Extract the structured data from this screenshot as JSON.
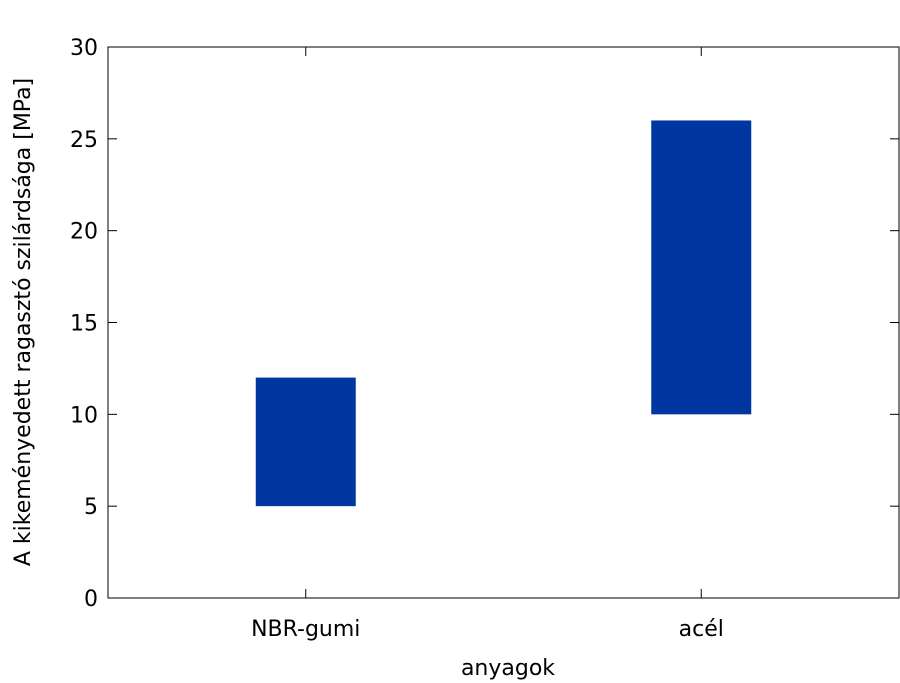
{
  "chart_data": {
    "type": "bar",
    "subtype": "floating-range",
    "title": "",
    "xlabel": "anyagok",
    "ylabel": "A kikeményedett ragasztó szilárdsága [MPa]",
    "categories": [
      "NBR-gumi",
      "acél"
    ],
    "ranges": [
      {
        "category": "NBR-gumi",
        "low": 5,
        "high": 12
      },
      {
        "category": "acél",
        "low": 10,
        "high": 26
      }
    ],
    "ylim": [
      0,
      30
    ],
    "yticks": [
      0,
      5,
      10,
      15,
      20,
      25,
      30
    ],
    "grid": false,
    "legend": "none",
    "bar_color": "#0036a0"
  }
}
